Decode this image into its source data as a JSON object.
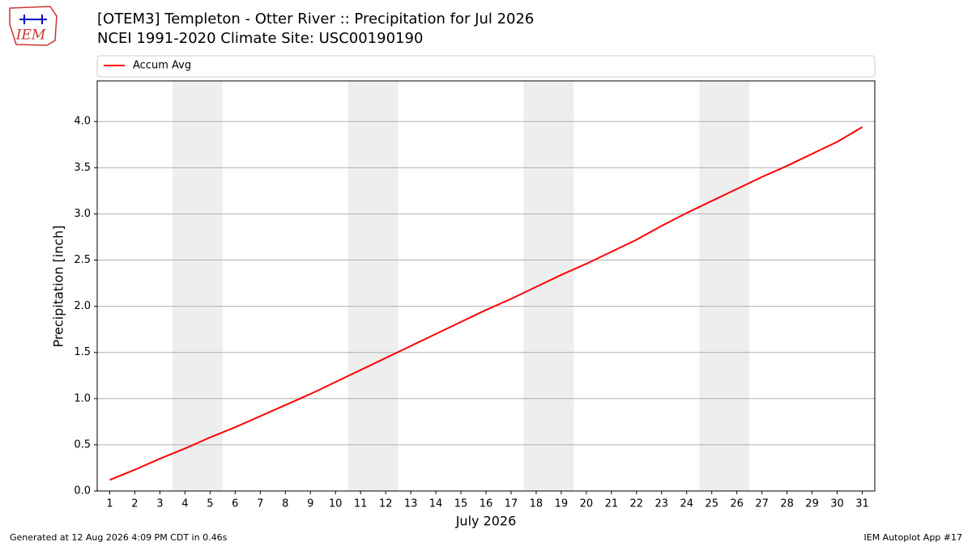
{
  "logo_text": "IEM",
  "footer_left": "Generated at 12 Aug 2026 4:09 PM CDT in 0.46s",
  "footer_right": "IEM Autoplot App #17",
  "chart_data": {
    "type": "line",
    "title": "[OTEM3] Templeton - Otter River :: Precipitation for Jul 2026",
    "subtitle": "NCEI 1991-2020 Climate Site: USC00190190",
    "x_label": "July 2026",
    "y_label": "Precipitation [inch]",
    "x": [
      1,
      2,
      3,
      4,
      5,
      6,
      7,
      8,
      9,
      10,
      11,
      12,
      13,
      14,
      15,
      16,
      17,
      18,
      19,
      20,
      21,
      22,
      23,
      24,
      25,
      26,
      27,
      28,
      29,
      30,
      31
    ],
    "series": [
      {
        "name": "Accum Avg",
        "color": "#ff0000",
        "values": [
          0.12,
          0.23,
          0.35,
          0.46,
          0.58,
          0.69,
          0.81,
          0.93,
          1.05,
          1.18,
          1.31,
          1.44,
          1.57,
          1.7,
          1.83,
          1.96,
          2.08,
          2.21,
          2.34,
          2.46,
          2.59,
          2.72,
          2.87,
          3.01,
          3.14,
          3.27,
          3.4,
          3.52,
          3.65,
          3.78,
          3.94
        ]
      }
    ],
    "weekend_spans": [
      [
        3.5,
        5.5
      ],
      [
        10.5,
        12.5
      ],
      [
        17.5,
        19.5
      ],
      [
        24.5,
        26.5
      ]
    ],
    "xlim": [
      0.5,
      31.5
    ],
    "xticks": [
      1,
      2,
      3,
      4,
      5,
      6,
      7,
      8,
      9,
      10,
      11,
      12,
      13,
      14,
      15,
      16,
      17,
      18,
      19,
      20,
      21,
      22,
      23,
      24,
      25,
      26,
      27,
      28,
      29,
      30,
      31
    ],
    "ylim": [
      0,
      4.44
    ],
    "yticks": [
      {
        "value": 0,
        "label": "0.0"
      },
      {
        "value": 0.5,
        "label": "0.5"
      },
      {
        "value": 1,
        "label": "1.0"
      },
      {
        "value": 1.5,
        "label": "1.5"
      },
      {
        "value": 2,
        "label": "2.0"
      },
      {
        "value": 2.5,
        "label": "2.5"
      },
      {
        "value": 3,
        "label": "3.0"
      },
      {
        "value": 3.5,
        "label": "3.5"
      },
      {
        "value": 4,
        "label": "4.0"
      }
    ],
    "grid": true,
    "legend_position": "top"
  }
}
